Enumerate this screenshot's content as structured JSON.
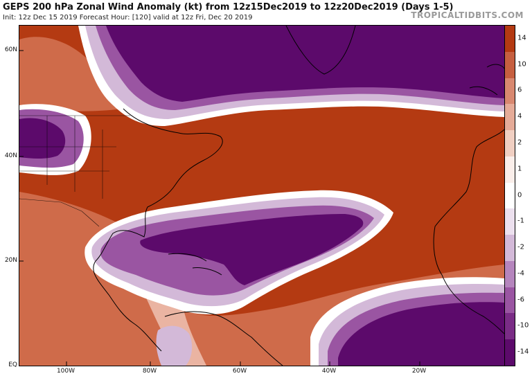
{
  "header": {
    "title": "GEPS 200 hPa Zonal Wind Anomaly (kt) from 12z15Dec2019 to 12z20Dec2019 (Days 1-5)",
    "subtitle": "Init: 12z Dec 15 2019   Forecast Hour: [120]   valid at 12z Fri, Dec 20 2019",
    "credit": "TROPICALTIDBITS.COM"
  },
  "map": {
    "lat_labels": [
      "60N",
      "40N",
      "20N",
      "EQ"
    ],
    "lon_labels": [
      "100W",
      "80W",
      "60W",
      "40W",
      "20W"
    ],
    "land_color": "#000000"
  },
  "colorbar": {
    "labels": [
      "14",
      "10",
      "6",
      "4",
      "2",
      "1",
      "0",
      "-1",
      "-2",
      "-4",
      "-6",
      "-10",
      "-14"
    ],
    "colors": [
      "#b43a12",
      "#c65f40",
      "#d88870",
      "#e5ab98",
      "#f0cfc2",
      "#faeeea",
      "#ffffff",
      "#ece0ee",
      "#d3b9d8",
      "#b585bd",
      "#9a55a2",
      "#7a2c86",
      "#5c0a6b"
    ]
  },
  "palette": {
    "strong_westerly": "#b43a12",
    "mid_westerly": "#cf6b4a",
    "weak_westerly": "#eab4a2",
    "neutral": "#ffffff",
    "weak_easterly": "#d3b9d8",
    "mid_easterly": "#9a55a2",
    "strong_easterly": "#5c0a6b"
  }
}
